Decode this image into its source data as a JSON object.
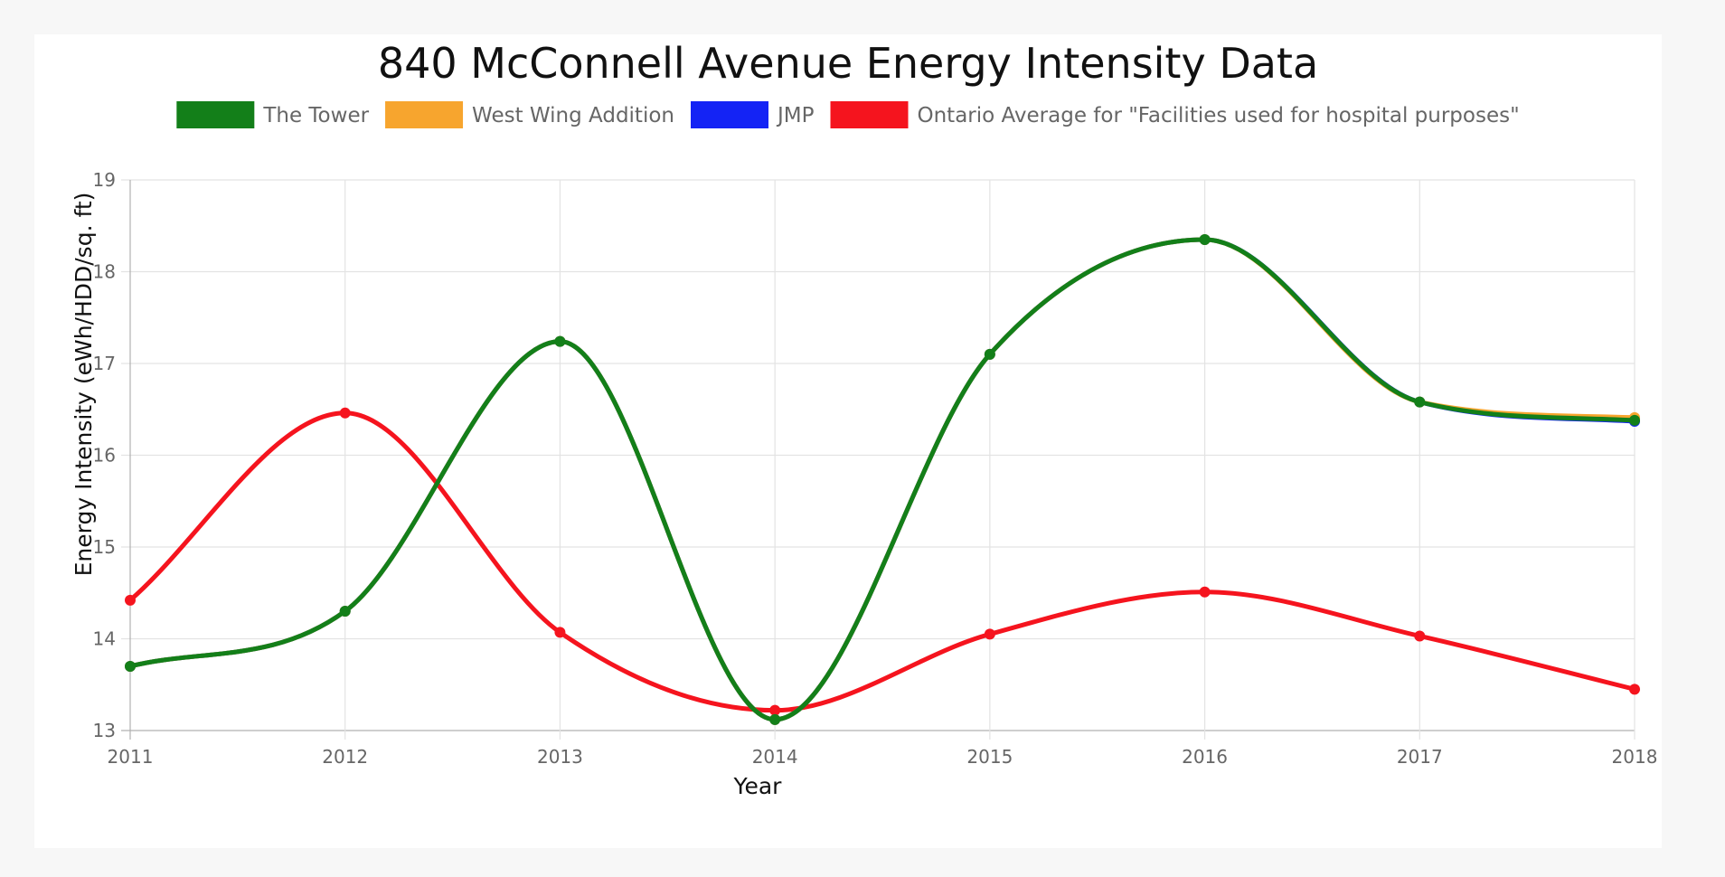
{
  "chart_data": {
    "type": "line",
    "title": "840 McConnell Avenue Energy Intensity Data",
    "xlabel": "Year",
    "ylabel": "Energy Intensity (eWh/HDD/sq. ft)",
    "x": [
      "2011",
      "2012",
      "2013",
      "2014",
      "2015",
      "2016",
      "2017",
      "2018"
    ],
    "ylim": [
      13,
      19
    ],
    "yticks": [
      "13",
      "14",
      "15",
      "16",
      "17",
      "18",
      "19"
    ],
    "grid": true,
    "legend_position": "top",
    "series": [
      {
        "name": "The Tower",
        "color": "#137f19",
        "values": [
          13.7,
          14.3,
          17.24,
          13.12,
          17.1,
          18.35,
          16.58,
          16.38
        ]
      },
      {
        "name": "West Wing Addition",
        "color": "#f7a52e",
        "values": [
          13.7,
          14.3,
          17.24,
          13.12,
          17.1,
          18.35,
          16.58,
          16.41
        ]
      },
      {
        "name": "JMP",
        "color": "#1423f5",
        "values": [
          13.7,
          14.3,
          17.24,
          13.12,
          17.1,
          18.35,
          16.58,
          16.37
        ]
      },
      {
        "name": "Ontario Average for \"Facilities used for hospital purposes\"",
        "color": "#f5141e",
        "values": [
          14.42,
          16.46,
          14.07,
          13.22,
          14.05,
          14.51,
          14.03,
          13.45
        ]
      }
    ]
  }
}
